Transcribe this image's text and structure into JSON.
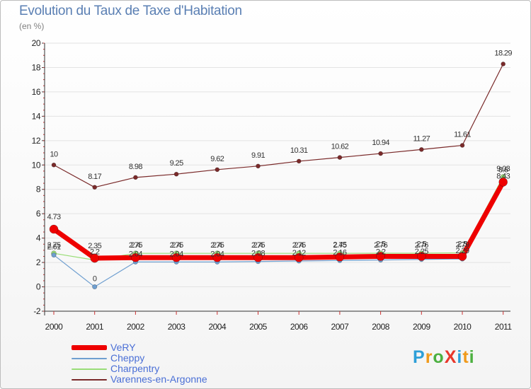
{
  "header": {
    "title": "Evolution du Taux de Taxe d'Habitation",
    "subtitle": "(en %)"
  },
  "logo": {
    "text": "ProXiti",
    "letter_colors": [
      "#2d9fd8",
      "#f09a1b",
      "#4bb03f",
      "#e8372b",
      "#2d9fd8",
      "#f09a1b",
      "#4bb03f"
    ]
  },
  "chart_data": {
    "type": "line",
    "title": "Evolution du Taux de Taxe d'Habitation",
    "ylabel": "(en %)",
    "xlabel": "",
    "ylim": [
      -2,
      20
    ],
    "yticks": [
      -2,
      0,
      2,
      4,
      6,
      8,
      10,
      12,
      14,
      16,
      18,
      20
    ],
    "x": [
      "2000",
      "2001",
      "2002",
      "2003",
      "2004",
      "2005",
      "2006",
      "2007",
      "2008",
      "2009",
      "2010",
      "2011"
    ],
    "grid": "horizontal",
    "legend_position": "bottom-left",
    "series": [
      {
        "name": "Varennes-en-Argonne",
        "color": "#7a2a2a",
        "values": [
          10,
          8.17,
          8.98,
          9.25,
          9.62,
          9.91,
          10.31,
          10.62,
          10.94,
          11.27,
          11.61,
          18.29
        ],
        "labels": [
          "10",
          "8.17",
          "8.98",
          "9.25",
          "9.62",
          "9.91",
          "10.31",
          "10.62",
          "10.94",
          "11.27",
          "11.61",
          "18.29"
        ]
      },
      {
        "name": "Charpentry",
        "color": "#99dd77",
        "values": [
          2.75,
          2.2,
          2.75,
          2.75,
          2.75,
          2.75,
          2.75,
          2.75,
          2.76,
          2.76,
          2.79,
          9.03
        ],
        "labels": [
          "2.75",
          "2.2",
          "2.75",
          "2.75",
          "2.75",
          "2.75",
          "2.75",
          "2.75",
          "2.76",
          "2.76",
          "2.79",
          "9.03"
        ]
      },
      {
        "name": "Cheppy",
        "color": "#6f9fd0",
        "values": [
          2.61,
          0,
          2.04,
          2.04,
          2.04,
          2.08,
          2.12,
          2.16,
          2.2,
          2.25,
          2.29,
          8.43
        ],
        "labels": [
          "2.61",
          "0",
          "2.04",
          "2.04",
          "2.04",
          "2.08",
          "2.12",
          "2.16",
          "2.2",
          "2.25",
          "2.29",
          "8.43"
        ]
      },
      {
        "name": "VeRY",
        "color": "#ee0000",
        "values": [
          4.73,
          2.35,
          2.4,
          2.4,
          2.4,
          2.4,
          2.4,
          2.45,
          2.5,
          2.5,
          2.5,
          8.6
        ],
        "labels": [
          "4.73",
          "2.35",
          "2.4",
          "2.4",
          "2.4",
          "2.4",
          "2.4",
          "2.45",
          "2.5",
          "2.5",
          "2.5",
          "8.6"
        ]
      }
    ]
  },
  "legend": {
    "items": [
      {
        "label": "VeRY",
        "color": "#ee0000"
      },
      {
        "label": "Cheppy",
        "color": "#6f9fd0"
      },
      {
        "label": "Charpentry",
        "color": "#99dd77"
      },
      {
        "label": "Varennes-en-Argonne",
        "color": "#7a2a2a"
      }
    ]
  }
}
